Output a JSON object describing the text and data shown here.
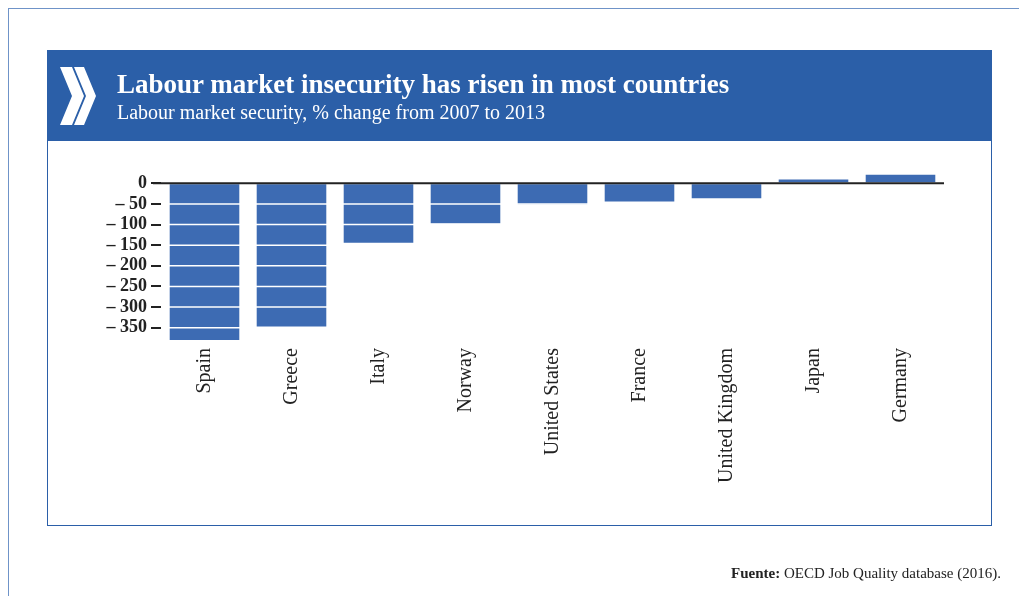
{
  "chart_data": {
    "type": "bar",
    "title": "Labour market insecurity has risen in most countries",
    "subtitle": "Labour market security, % change from 2007 to 2013",
    "categories": [
      "Spain",
      "Greece",
      "Italy",
      "Norway",
      "United States",
      "France",
      "United Kingdom",
      "Japan",
      "Germany"
    ],
    "values": [
      -380,
      -347,
      -144,
      -97,
      -51,
      -44,
      -36,
      9,
      21
    ],
    "color": "#3d6bb3",
    "ylim": [
      -380,
      25
    ],
    "yticks": [
      0,
      {
        "value": -50,
        "label": "– 50"
      },
      {
        "value": -100,
        "label": "– 100"
      },
      {
        "value": -150,
        "label": "– 150"
      },
      {
        "value": -200,
        "label": "– 200"
      },
      {
        "value": -250,
        "label": "– 250"
      },
      {
        "value": -300,
        "label": "– 300"
      },
      {
        "value": -350,
        "label": "– 350"
      }
    ],
    "grid": "y",
    "legend": false,
    "annotations": [
      "Fuente: OECD Job Quality database (2016)."
    ]
  }
}
